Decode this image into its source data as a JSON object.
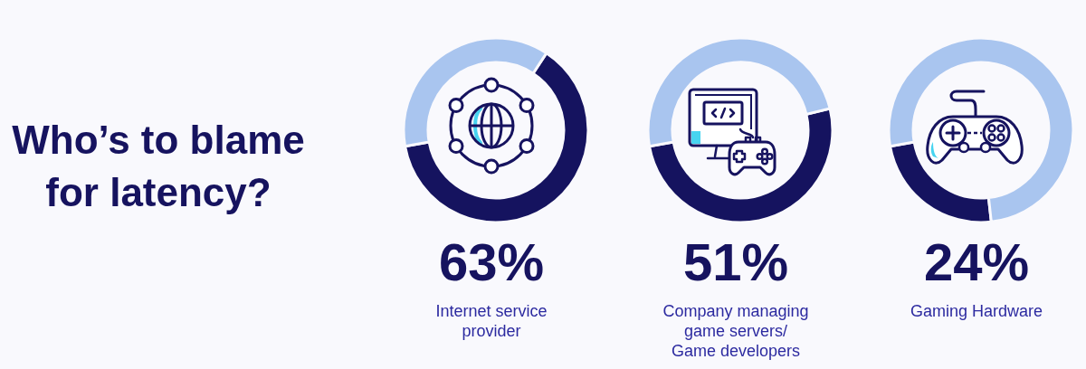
{
  "chart_data": [
    {
      "type": "other",
      "title": "Who’s to blame for latency?"
    },
    {
      "type": "donut",
      "title": "Internet service provider",
      "categories": [
        null,
        null
      ],
      "values": [
        63,
        37
      ],
      "colors": [
        "#15135f",
        "#a9c5ef"
      ],
      "value_labels": [
        "63%",
        null
      ]
    },
    {
      "type": "donut",
      "title": "Company managing game servers/\nGame developers",
      "categories": [
        null,
        null
      ],
      "values": [
        51,
        49
      ],
      "colors": [
        "#15135f",
        "#a9c5ef"
      ],
      "value_labels": [
        "51%",
        null
      ]
    },
    {
      "type": "donut",
      "title": "Gaming Hardware",
      "categories": [
        null,
        null
      ],
      "values": [
        24,
        76
      ],
      "colors": [
        "#15135f",
        "#a9c5ef"
      ],
      "value_labels": [
        "24%",
        null
      ]
    }
  ]
}
